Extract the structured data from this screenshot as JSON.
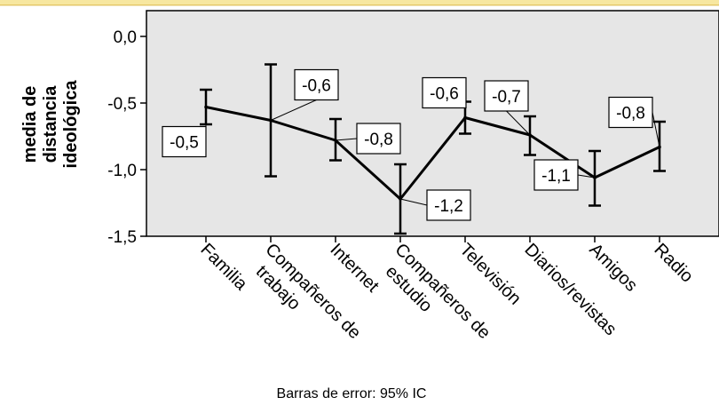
{
  "chart_data": {
    "type": "line",
    "ylabel_lines": [
      "media de",
      "distancia",
      "ideológica"
    ],
    "ylim": [
      -1.5,
      0.0
    ],
    "yticks": [
      0.0,
      -0.5,
      -1.0,
      -1.5
    ],
    "ytick_labels": [
      "0,0",
      "-0,5",
      "-1,0",
      "-1,5"
    ],
    "grid": false,
    "categories": [
      [
        "Familia"
      ],
      [
        "Compañeros de",
        "trabajo"
      ],
      [
        "Internet"
      ],
      [
        "Compañeros de",
        "estudio"
      ],
      [
        "Televisión"
      ],
      [
        "Diarios/revistas"
      ],
      [
        "Amigos"
      ],
      [
        "Radio"
      ]
    ],
    "series": [
      {
        "values": [
          -0.53,
          -0.63,
          -0.78,
          -1.22,
          -0.61,
          -0.74,
          -1.06,
          -0.83
        ],
        "ci_lower": [
          -0.66,
          -1.05,
          -0.93,
          -1.48,
          -0.73,
          -0.89,
          -1.27,
          -1.01
        ],
        "ci_upper": [
          -0.4,
          -0.21,
          -0.62,
          -0.96,
          -0.49,
          -0.6,
          -0.86,
          -0.64
        ],
        "data_labels": [
          "-0,5",
          "-0,6",
          "-0,8",
          "-1,2",
          "-0,6",
          "-0,7",
          "-1,1",
          "-0,8"
        ],
        "color": "#000000"
      }
    ],
    "footer": "Barras de error: 95% IC",
    "plot_background": "#e6e6e6",
    "page_background": "#ffffff",
    "accent_bar_color": "#f7e7a0"
  }
}
